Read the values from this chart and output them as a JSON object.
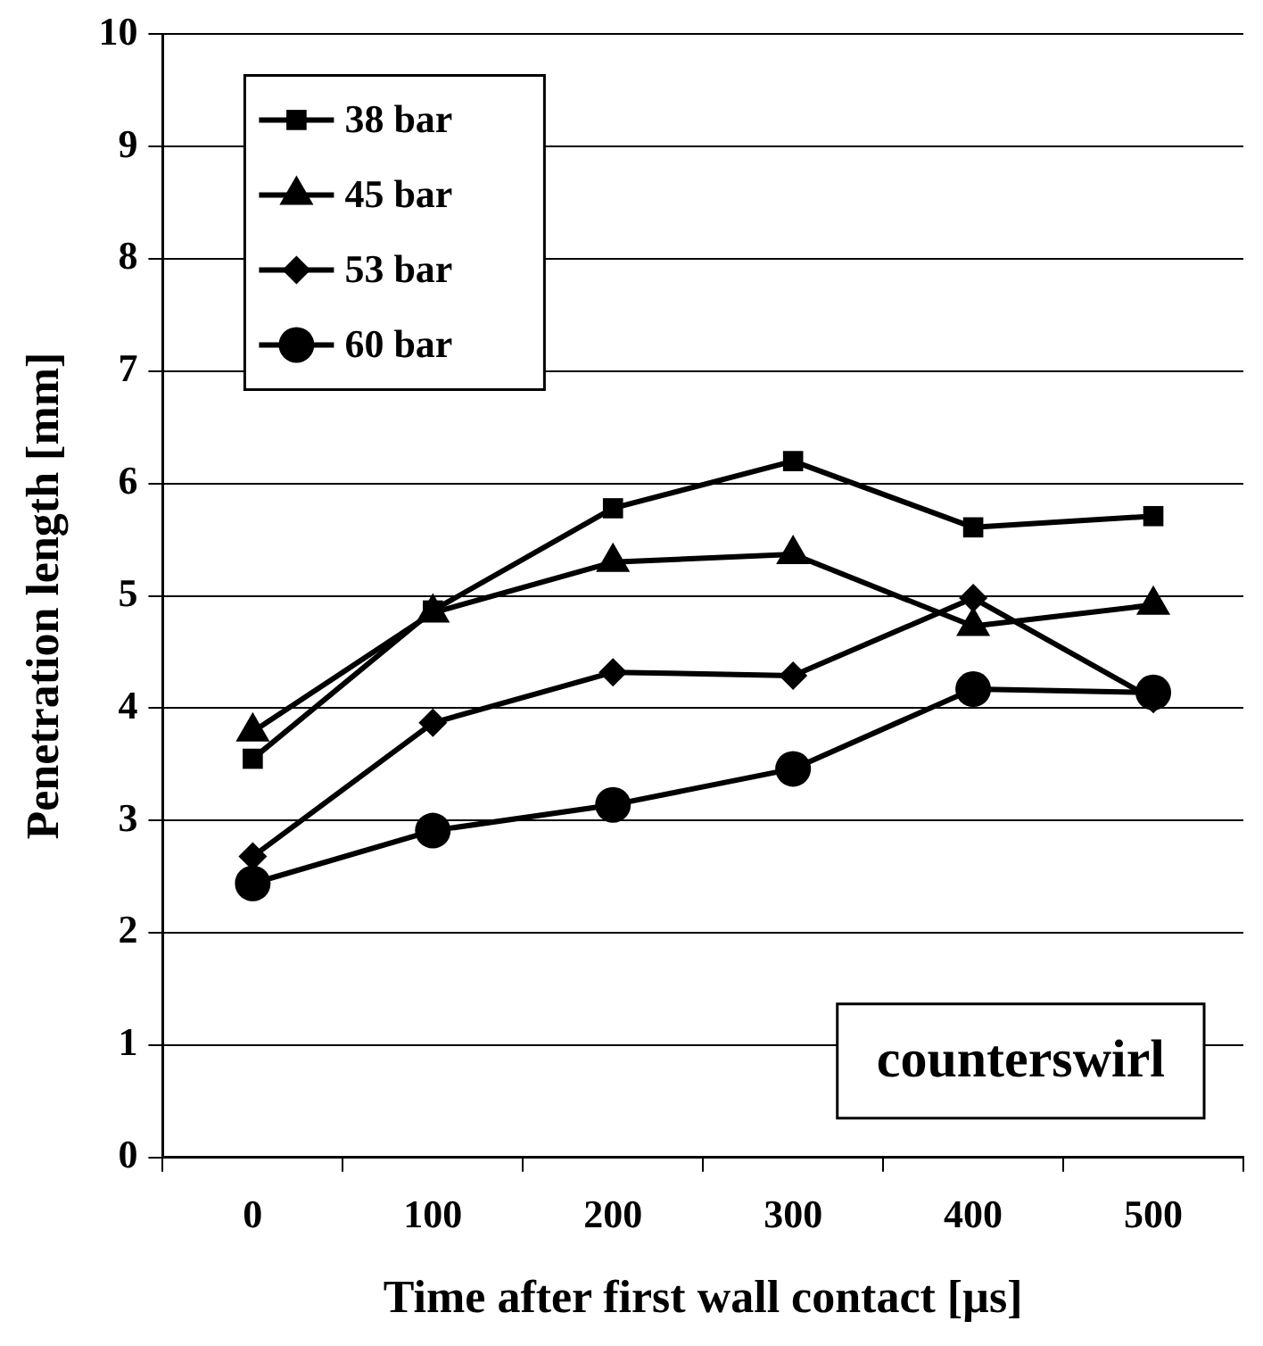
{
  "chart_data": {
    "type": "line",
    "xlabel": "Time after first wall contact [µs]",
    "ylabel": "Penetration length [mm]",
    "categories": [
      "0",
      "100",
      "200",
      "300",
      "400",
      "500"
    ],
    "ylim": [
      0,
      10
    ],
    "yticks": [
      0,
      1,
      2,
      3,
      4,
      5,
      6,
      7,
      8,
      9,
      10
    ],
    "grid": "y",
    "legend": "top left",
    "line_style": "solid",
    "annotations": [
      "counterswirl"
    ],
    "series": [
      {
        "name": "38 bar",
        "color": "#000000",
        "marker": "square",
        "values": [
          3.55,
          4.87,
          5.78,
          6.2,
          5.61,
          5.71
        ]
      },
      {
        "name": "45 bar",
        "color": "#000000",
        "marker": "triangle",
        "values": [
          3.79,
          4.85,
          5.3,
          5.37,
          4.73,
          4.92
        ]
      },
      {
        "name": "53 bar",
        "color": "#000000",
        "marker": "diamond",
        "values": [
          2.68,
          3.87,
          4.32,
          4.29,
          4.98,
          4.08
        ]
      },
      {
        "name": "60 bar",
        "color": "#000000",
        "marker": "circle",
        "values": [
          2.44,
          2.91,
          3.14,
          3.46,
          4.17,
          4.14
        ]
      }
    ]
  }
}
